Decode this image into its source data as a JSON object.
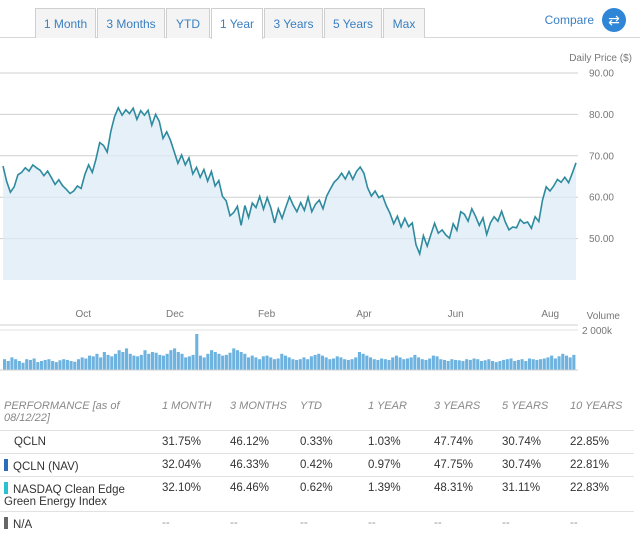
{
  "tabs": [
    {
      "label": "1 Month",
      "active": false
    },
    {
      "label": "3 Months",
      "active": false
    },
    {
      "label": "YTD",
      "active": false
    },
    {
      "label": "1 Year",
      "active": true
    },
    {
      "label": "3 Years",
      "active": false
    },
    {
      "label": "5 Years",
      "active": false
    },
    {
      "label": "Max",
      "active": false
    }
  ],
  "compare": {
    "label": "Compare"
  },
  "colors": {
    "line": "#2e8b9e",
    "fill": "#dcebf6",
    "volume": "#6eb3df",
    "accent": "#3a7fc1"
  },
  "chart_data": {
    "type": "line",
    "ylabel": "Daily Price ($)",
    "ylim": [
      40,
      90
    ],
    "yticks": [
      50,
      60,
      70,
      80,
      90
    ],
    "ytick_labels": [
      "50.00",
      "60.00",
      "70.00",
      "80.00",
      "90.00"
    ],
    "xticks": [
      "Oct",
      "Dec",
      "Feb",
      "Apr",
      "Jun",
      "Aug"
    ],
    "xtick_pos": [
      0.14,
      0.3,
      0.46,
      0.63,
      0.79,
      0.955
    ],
    "grid": true,
    "series": [
      {
        "values": [
          67.5,
          63.8,
          61.2,
          62.5,
          65.4,
          66.0,
          67.1,
          66.3,
          67.8,
          67.1,
          66.5,
          65.2,
          66.3,
          64.7,
          63.1,
          64.2,
          62.8,
          61.9,
          60.9,
          61.5,
          62.7,
          62.1,
          65.5,
          67.8,
          66.0,
          69.2,
          73.2,
          72.5,
          70.9,
          76.0,
          79.5,
          81.6,
          79.8,
          81.1,
          80.2,
          81.5,
          78.8,
          80.9,
          79.8,
          81.0,
          77.4,
          80.0,
          78.3,
          74.2,
          75.8,
          73.8,
          71.0,
          68.2,
          70.2,
          67.8,
          69.5,
          65.6,
          67.2,
          64.8,
          66.7,
          63.9,
          66.2,
          62.7,
          64.0,
          60.2,
          59.1,
          55.5,
          56.3,
          57.8,
          53.2,
          58.0,
          55.1,
          58.6,
          57.5,
          60.2,
          57.1,
          59.9,
          57.4,
          53.8,
          57.2,
          54.9,
          57.6,
          60.1,
          58.1,
          56.5,
          58.7,
          56.8,
          60.0,
          56.5,
          58.3,
          59.3,
          57.2,
          60.3,
          62.0,
          63.6,
          64.5,
          65.8,
          64.4,
          66.2,
          64.3,
          66.2,
          67.3,
          65.8,
          62.3,
          60.3,
          61.5,
          59.9,
          60.4,
          58.0,
          56.1,
          53.6,
          55.4,
          52.8,
          54.9,
          52.9,
          53.8,
          48.5,
          46.3,
          50.7,
          48.2,
          51.0,
          53.7,
          51.3,
          52.1,
          50.9,
          50.1,
          53.6,
          52.0,
          56.5,
          55.9,
          54.2,
          57.2,
          55.4,
          53.2,
          55.0,
          51.0,
          53.8,
          55.3,
          54.2,
          56.6,
          54.0,
          52.1,
          52.8,
          52.6,
          54.6,
          53.7,
          54.0,
          52.5,
          55.3,
          54.1,
          59.3,
          62.5,
          61.5,
          62.7,
          64.3,
          63.6,
          64.8,
          63.5,
          65.8,
          68.3
        ]
      }
    ],
    "volume_label": "Volume",
    "volume_tick_label": "2 000k",
    "volume_values": [
      0.3,
      0.25,
      0.35,
      0.3,
      0.25,
      0.2,
      0.3,
      0.28,
      0.32,
      0.22,
      0.25,
      0.28,
      0.3,
      0.25,
      0.22,
      0.27,
      0.3,
      0.28,
      0.25,
      0.23,
      0.3,
      0.35,
      0.32,
      0.4,
      0.38,
      0.45,
      0.35,
      0.5,
      0.42,
      0.38,
      0.45,
      0.55,
      0.5,
      0.6,
      0.45,
      0.4,
      0.38,
      0.42,
      0.55,
      0.45,
      0.5,
      0.48,
      0.42,
      0.4,
      0.45,
      0.55,
      0.6,
      0.5,
      0.45,
      0.35,
      0.38,
      0.42,
      1.0,
      0.4,
      0.35,
      0.45,
      0.55,
      0.5,
      0.45,
      0.4,
      0.42,
      0.48,
      0.6,
      0.55,
      0.5,
      0.45,
      0.35,
      0.4,
      0.35,
      0.3,
      0.38,
      0.4,
      0.35,
      0.3,
      0.32,
      0.45,
      0.4,
      0.35,
      0.3,
      0.28,
      0.3,
      0.35,
      0.3,
      0.38,
      0.42,
      0.45,
      0.4,
      0.35,
      0.3,
      0.32,
      0.38,
      0.35,
      0.3,
      0.28,
      0.3,
      0.35,
      0.5,
      0.45,
      0.4,
      0.35,
      0.3,
      0.28,
      0.32,
      0.3,
      0.28,
      0.35,
      0.4,
      0.35,
      0.3,
      0.32,
      0.35,
      0.42,
      0.35,
      0.3,
      0.28,
      0.32,
      0.4,
      0.38,
      0.3,
      0.28,
      0.25,
      0.3,
      0.28,
      0.27,
      0.25,
      0.3,
      0.28,
      0.32,
      0.3,
      0.25,
      0.27,
      0.3,
      0.25,
      0.22,
      0.25,
      0.28,
      0.3,
      0.32,
      0.25,
      0.28,
      0.3,
      0.25,
      0.32,
      0.3,
      0.28,
      0.3,
      0.32,
      0.35,
      0.4,
      0.32,
      0.38,
      0.45,
      0.4,
      0.35,
      0.42
    ]
  },
  "performance": {
    "headers": [
      "PERFORMANCE [as of 08/12/22]",
      "1 MONTH",
      "3 MONTHS",
      "YTD",
      "1 YEAR",
      "3 YEARS",
      "5 YEARS",
      "10 YEARS"
    ],
    "rows": [
      {
        "name": "QCLN",
        "swatch": "",
        "values": [
          "31.75%",
          "46.12%",
          "0.33%",
          "1.03%",
          "47.74%",
          "30.74%",
          "22.85%"
        ]
      },
      {
        "name": "QCLN (NAV)",
        "swatch": "#2a6ebb",
        "values": [
          "32.04%",
          "46.33%",
          "0.42%",
          "0.97%",
          "47.75%",
          "30.74%",
          "22.81%"
        ]
      },
      {
        "name": "NASDAQ Clean Edge Green Energy Index",
        "swatch": "#2bbfd0",
        "values": [
          "32.10%",
          "46.46%",
          "0.62%",
          "1.39%",
          "48.31%",
          "31.11%",
          "22.83%"
        ]
      },
      {
        "name": "N/A",
        "swatch": "#666666",
        "values": [
          "--",
          "--",
          "--",
          "--",
          "--",
          "--",
          "--"
        ]
      }
    ]
  }
}
